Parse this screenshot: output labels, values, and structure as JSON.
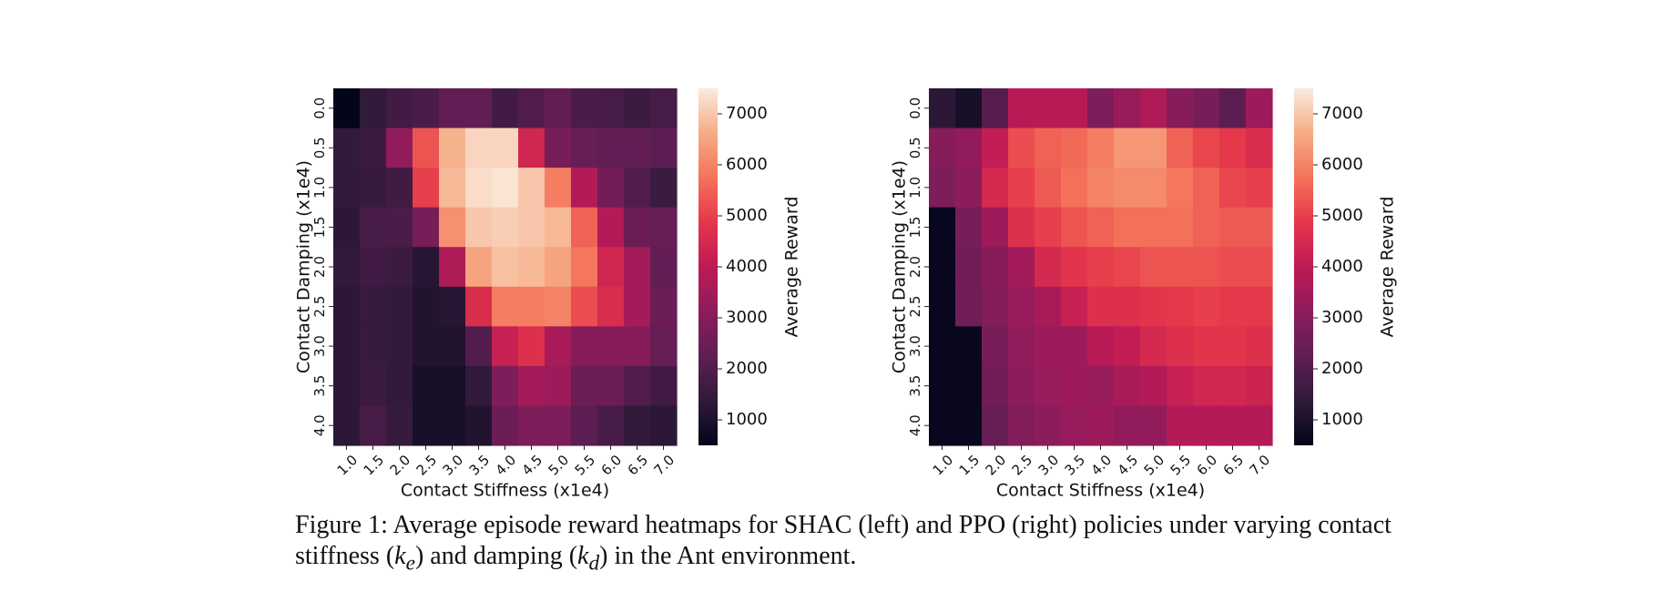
{
  "chart_data": [
    {
      "type": "heatmap",
      "title": "",
      "xlabel": "Contact Stiffness (x1e4)",
      "ylabel": "Contact Damping (x1e4)",
      "x_ticks": [
        "1.0",
        "1.5",
        "2.0",
        "2.5",
        "3.0",
        "3.5",
        "4.0",
        "4.5",
        "5.0",
        "5.5",
        "6.0",
        "6.5",
        "7.0"
      ],
      "y_ticks": [
        "0.0",
        "0.5",
        "1.0",
        "1.5",
        "2.0",
        "2.5",
        "3.0",
        "3.5",
        "4.0"
      ],
      "colorbar_label": "Average Reward",
      "colorbar_ticks": [
        1000,
        2000,
        3000,
        4000,
        5000,
        6000,
        7000
      ],
      "vmin": 500,
      "vmax": 7500,
      "values": [
        [
          500,
          1400,
          1700,
          1900,
          2300,
          2300,
          1700,
          2000,
          2300,
          1900,
          1800,
          1600,
          1800
        ],
        [
          1400,
          1600,
          3200,
          5300,
          6700,
          7200,
          7200,
          4400,
          2700,
          2400,
          2300,
          2300,
          2200
        ],
        [
          1400,
          1500,
          1700,
          5000,
          6800,
          7300,
          7400,
          7000,
          5900,
          3800,
          2600,
          2000,
          1600
        ],
        [
          1300,
          1800,
          1900,
          2700,
          6200,
          7000,
          7100,
          7000,
          6800,
          5500,
          3800,
          2500,
          2400
        ],
        [
          1400,
          1700,
          1600,
          1200,
          3700,
          6500,
          6900,
          6800,
          6500,
          5800,
          4400,
          3500,
          2300
        ],
        [
          1300,
          1500,
          1400,
          1100,
          1200,
          4600,
          5900,
          5900,
          6000,
          5200,
          4600,
          3500,
          2500
        ],
        [
          1300,
          1500,
          1400,
          1100,
          1100,
          2000,
          4200,
          4700,
          3600,
          3000,
          3000,
          3000,
          2400
        ],
        [
          1300,
          1600,
          1400,
          900,
          900,
          1400,
          2800,
          3500,
          3400,
          2500,
          2500,
          2000,
          1700
        ],
        [
          1300,
          1800,
          1500,
          900,
          900,
          1100,
          2500,
          2800,
          2800,
          2200,
          1800,
          1400,
          1300
        ]
      ]
    },
    {
      "type": "heatmap",
      "title": "",
      "xlabel": "Contact Stiffness (x1e4)",
      "ylabel": "Contact Damping (x1e4)",
      "x_ticks": [
        "1.0",
        "1.5",
        "2.0",
        "2.5",
        "3.0",
        "3.5",
        "4.0",
        "4.5",
        "5.0",
        "5.5",
        "6.0",
        "6.5",
        "7.0"
      ],
      "y_ticks": [
        "0.0",
        "0.5",
        "1.0",
        "1.5",
        "2.0",
        "2.5",
        "3.0",
        "3.5",
        "4.0"
      ],
      "colorbar_label": "Average Reward",
      "colorbar_ticks": [
        1000,
        2000,
        3000,
        4000,
        5000,
        6000,
        7000
      ],
      "vmin": 500,
      "vmax": 7500,
      "values": [
        [
          1300,
          900,
          2100,
          3900,
          3900,
          3900,
          2800,
          3300,
          3700,
          3000,
          2700,
          2200,
          3400
        ],
        [
          3000,
          3200,
          4100,
          5200,
          5500,
          5600,
          5900,
          6300,
          6300,
          5500,
          5100,
          4900,
          4600
        ],
        [
          2800,
          3100,
          4500,
          5000,
          5400,
          5700,
          6000,
          6100,
          6100,
          5800,
          5500,
          5100,
          5000
        ],
        [
          600,
          2700,
          3400,
          4700,
          5000,
          5300,
          5500,
          5700,
          5700,
          5700,
          5500,
          5400,
          5400
        ],
        [
          600,
          2600,
          3000,
          3500,
          4500,
          4800,
          5000,
          5100,
          5300,
          5300,
          5300,
          5200,
          5200
        ],
        [
          600,
          2600,
          2900,
          3300,
          3600,
          4200,
          4700,
          4700,
          4800,
          4900,
          5000,
          4900,
          4900
        ],
        [
          600,
          600,
          2700,
          3200,
          3400,
          3400,
          3900,
          4100,
          4500,
          4700,
          4800,
          4800,
          4700
        ],
        [
          600,
          600,
          2600,
          3100,
          3300,
          3400,
          3300,
          3600,
          3800,
          4200,
          4400,
          4400,
          4300
        ],
        [
          600,
          600,
          2400,
          2900,
          3100,
          3300,
          3400,
          3200,
          3200,
          3800,
          3800,
          3800,
          3800
        ]
      ]
    }
  ],
  "caption": {
    "part1": "Figure 1: Average episode reward heatmaps for SHAC (left) and PPO (right) policies under varying contact stiffness (",
    "ke_base": "k",
    "ke_sub": "e",
    "part2": ") and damping (",
    "kd_base": "k",
    "kd_sub": "d",
    "part3": ") in the Ant environment."
  }
}
